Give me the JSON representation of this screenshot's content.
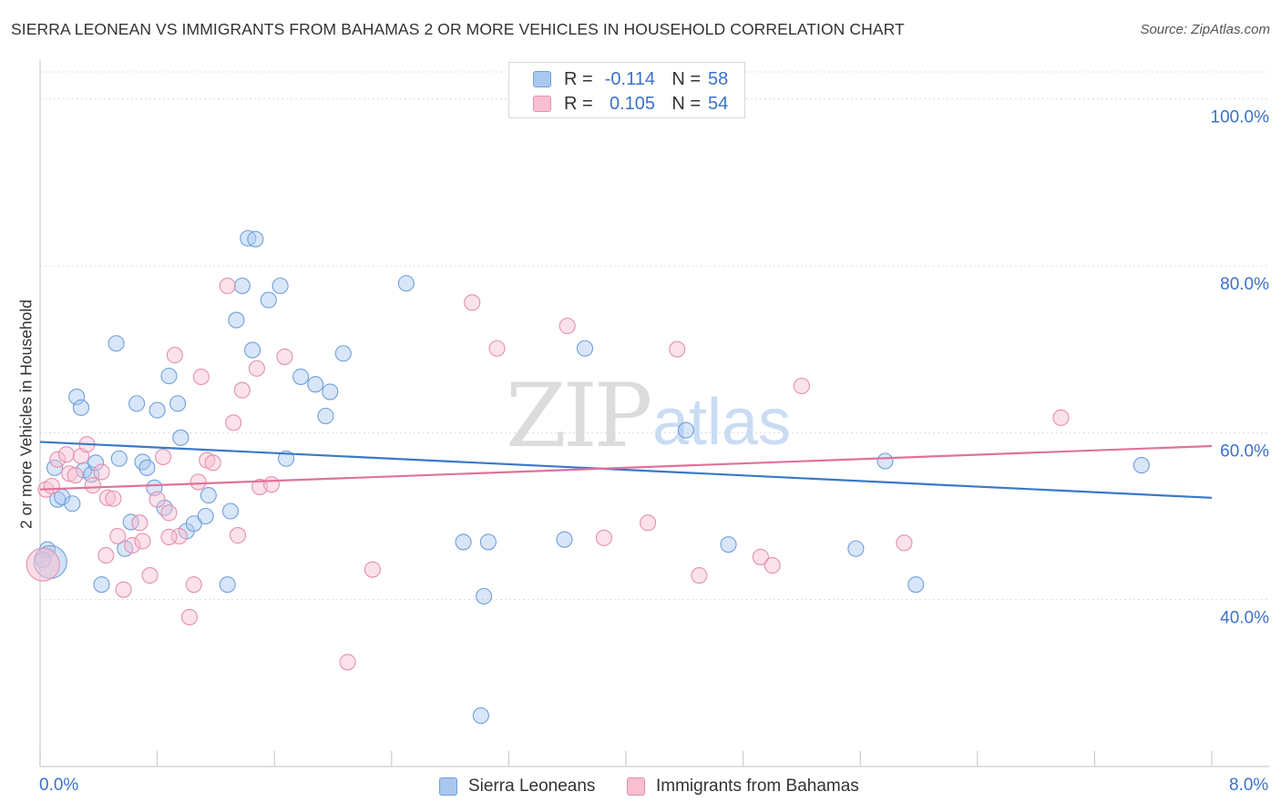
{
  "title": "SIERRA LEONEAN VS IMMIGRANTS FROM BAHAMAS 2 OR MORE VEHICLES IN HOUSEHOLD CORRELATION CHART",
  "source": "Source: ZipAtlas.com",
  "watermark": {
    "zip": "ZIP",
    "atlas": "atlas"
  },
  "legend": {
    "rows": [
      {
        "r_label": "R =",
        "r_value": "-0.114",
        "n_label": "N =",
        "n_value": "58",
        "color": "#a9c8f0",
        "border": "#6f9fdc"
      },
      {
        "r_label": "R =",
        "r_value": "0.105",
        "n_label": "N =",
        "n_value": "54",
        "color": "#f7bfd0",
        "border": "#e58fae"
      }
    ]
  },
  "bottom_legend": [
    {
      "label": "Sierra Leoneans",
      "color": "#a9c8f0",
      "border": "#6f9fdc"
    },
    {
      "label": "Immigrants from Bahamas",
      "color": "#f7bfd0",
      "border": "#e58fae"
    }
  ],
  "x_axis": {
    "min_label": "0.0%",
    "max_label": "8.0%"
  },
  "y_axis_label": "2 or more Vehicles in Household",
  "chart_data": {
    "type": "scatter",
    "title": "SIERRA LEONEAN VS IMMIGRANTS FROM BAHAMAS 2 OR MORE VEHICLES IN HOUSEHOLD CORRELATION CHART",
    "xlabel": "",
    "ylabel": "2 or more Vehicles in Household",
    "xlim": [
      0,
      8
    ],
    "ylim": [
      20,
      104
    ],
    "y_ticks": [
      40,
      60,
      80,
      100
    ],
    "y_tick_labels": [
      "40.0%",
      "60.0%",
      "80.0%",
      "100.0%"
    ],
    "grid": true,
    "series": [
      {
        "name": "Sierra Leoneans",
        "color": "#6f9fdc",
        "fill": "#a9c8f0",
        "r": -0.114,
        "n": 58,
        "trend": {
          "x": [
            0,
            8
          ],
          "y": [
            58.9,
            52.2
          ]
        },
        "points": [
          [
            0.05,
            46.0
          ],
          [
            0.02,
            44.8
          ],
          [
            0.1,
            55.8
          ],
          [
            0.12,
            52.0
          ],
          [
            0.15,
            52.3
          ],
          [
            0.22,
            51.5
          ],
          [
            0.25,
            64.3
          ],
          [
            0.28,
            63.0
          ],
          [
            0.3,
            55.5
          ],
          [
            0.35,
            55.0
          ],
          [
            0.38,
            56.4
          ],
          [
            0.42,
            41.8
          ],
          [
            0.52,
            70.7
          ],
          [
            0.54,
            56.9
          ],
          [
            0.58,
            46.1
          ],
          [
            0.62,
            49.3
          ],
          [
            0.66,
            63.5
          ],
          [
            0.7,
            56.5
          ],
          [
            0.73,
            55.8
          ],
          [
            0.78,
            53.4
          ],
          [
            0.8,
            62.7
          ],
          [
            0.85,
            51.0
          ],
          [
            0.88,
            66.8
          ],
          [
            0.94,
            63.5
          ],
          [
            0.96,
            59.4
          ],
          [
            1.0,
            48.2
          ],
          [
            1.05,
            49.1
          ],
          [
            1.13,
            50.0
          ],
          [
            1.15,
            52.5
          ],
          [
            1.28,
            41.8
          ],
          [
            1.3,
            50.6
          ],
          [
            1.34,
            73.5
          ],
          [
            1.38,
            77.6
          ],
          [
            1.42,
            83.3
          ],
          [
            1.47,
            83.2
          ],
          [
            1.45,
            69.9
          ],
          [
            1.56,
            75.9
          ],
          [
            1.64,
            77.6
          ],
          [
            1.68,
            56.9
          ],
          [
            1.78,
            66.7
          ],
          [
            1.88,
            65.8
          ],
          [
            1.95,
            62.0
          ],
          [
            1.98,
            64.9
          ],
          [
            2.07,
            69.5
          ],
          [
            2.5,
            77.9
          ],
          [
            2.89,
            46.9
          ],
          [
            3.03,
            40.4
          ],
          [
            3.06,
            46.9
          ],
          [
            3.58,
            47.2
          ],
          [
            3.72,
            70.1
          ],
          [
            4.41,
            60.3
          ],
          [
            4.7,
            46.6
          ],
          [
            5.57,
            46.1
          ],
          [
            5.77,
            56.6
          ],
          [
            5.98,
            41.8
          ],
          [
            7.52,
            56.1
          ],
          [
            3.01,
            26.1
          ],
          [
            0.07,
            44.5
          ]
        ]
      },
      {
        "name": "Immigrants from Bahamas",
        "color": "#e58fae",
        "fill": "#f7bfd0",
        "r": 0.105,
        "n": 54,
        "trend": {
          "x": [
            0,
            8
          ],
          "y": [
            53.2,
            58.4
          ]
        },
        "points": [
          [
            0.04,
            53.2
          ],
          [
            0.08,
            53.6
          ],
          [
            0.12,
            56.8
          ],
          [
            0.18,
            57.4
          ],
          [
            0.2,
            55.1
          ],
          [
            0.24,
            54.9
          ],
          [
            0.28,
            57.2
          ],
          [
            0.32,
            58.6
          ],
          [
            0.36,
            53.7
          ],
          [
            0.42,
            55.3
          ],
          [
            0.45,
            45.3
          ],
          [
            0.46,
            52.2
          ],
          [
            0.5,
            52.1
          ],
          [
            0.53,
            47.6
          ],
          [
            0.57,
            41.2
          ],
          [
            0.63,
            46.5
          ],
          [
            0.68,
            49.2
          ],
          [
            0.7,
            47.0
          ],
          [
            0.75,
            42.9
          ],
          [
            0.8,
            52.0
          ],
          [
            0.84,
            57.1
          ],
          [
            0.88,
            50.4
          ],
          [
            0.92,
            69.3
          ],
          [
            0.95,
            47.6
          ],
          [
            1.02,
            37.9
          ],
          [
            1.05,
            41.8
          ],
          [
            1.08,
            54.1
          ],
          [
            1.1,
            66.7
          ],
          [
            1.14,
            56.7
          ],
          [
            1.18,
            56.4
          ],
          [
            1.28,
            77.6
          ],
          [
            1.32,
            61.2
          ],
          [
            1.35,
            47.7
          ],
          [
            1.38,
            65.1
          ],
          [
            1.48,
            67.7
          ],
          [
            1.5,
            53.5
          ],
          [
            1.58,
            53.8
          ],
          [
            1.67,
            69.1
          ],
          [
            2.1,
            32.5
          ],
          [
            2.27,
            43.6
          ],
          [
            2.95,
            75.6
          ],
          [
            3.12,
            70.1
          ],
          [
            3.6,
            72.8
          ],
          [
            3.85,
            47.4
          ],
          [
            4.15,
            49.2
          ],
          [
            4.35,
            70.0
          ],
          [
            4.5,
            42.9
          ],
          [
            4.92,
            45.1
          ],
          [
            5.0,
            44.1
          ],
          [
            5.2,
            65.6
          ],
          [
            5.9,
            46.8
          ],
          [
            6.97,
            61.8
          ],
          [
            0.88,
            47.5
          ],
          [
            0.02,
            44.2
          ]
        ]
      }
    ]
  }
}
